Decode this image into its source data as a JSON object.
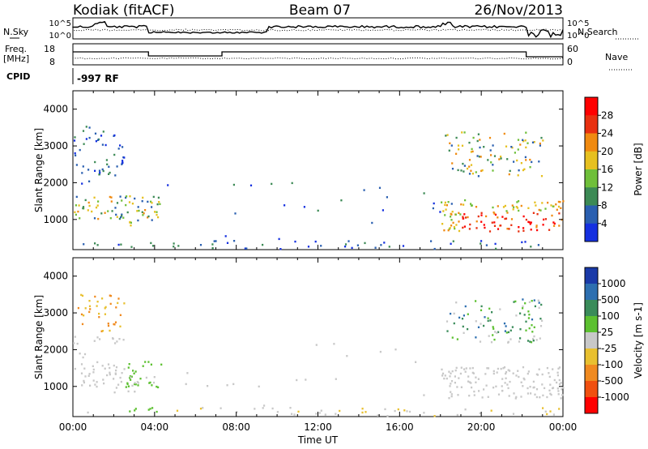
{
  "header": {
    "station": "Kodiak (fitACF)",
    "beam": "Beam 07",
    "date": "26/Nov/2013"
  },
  "top_panels": {
    "nsky_label": "N.Sky",
    "nsearch_label": "N.Search",
    "freq_label_1": "Freq.",
    "freq_label_2": "[MHz]",
    "nave_label": "Nave",
    "cpid_label": "CPID",
    "cpid_value": "-997 RF",
    "noise_ticks_left": [
      "10^5",
      "10^0"
    ],
    "noise_ticks_right": [
      "10^5",
      "10^0"
    ],
    "freq_ticks": [
      "18",
      "8"
    ],
    "nave_ticks": [
      "60",
      "0"
    ]
  },
  "chart_data": [
    {
      "type": "heatmap",
      "name": "power",
      "ylabel": "Slant Range [km]",
      "yticks": [
        "1000",
        "2000",
        "3000",
        "4000"
      ],
      "ylim": [
        180,
        4500
      ],
      "colorbar_label": "Power [dB]",
      "colorbar_ticks": [
        "4",
        "8",
        "12",
        "16",
        "20",
        "24",
        "28"
      ],
      "colors": [
        "#1530e0",
        "#2a5fb0",
        "#3c8a55",
        "#6fbf3a",
        "#e6c020",
        "#f08a10",
        "#e83010",
        "#ff0000"
      ]
    },
    {
      "type": "heatmap",
      "name": "velocity",
      "ylabel": "Slant Range [km]",
      "yticks": [
        "1000",
        "2000",
        "3000",
        "4000"
      ],
      "ylim": [
        180,
        4500
      ],
      "colorbar_label": "Velocity [m s-1]",
      "colorbar_ticks": [
        "1000",
        "500",
        "100",
        "25",
        "-25",
        "-100",
        "-500",
        "-1000"
      ],
      "colors": [
        "#1a3aa8",
        "#2d6fb0",
        "#3a8c5a",
        "#5cc030",
        "#c8c8c8",
        "#e8c030",
        "#f08a20",
        "#f05010",
        "#ff0000"
      ]
    }
  ],
  "xaxis": {
    "label": "Time UT",
    "ticks": [
      "00:00",
      "04:00",
      "08:00",
      "12:00",
      "16:00",
      "20:00",
      "00:00"
    ]
  }
}
